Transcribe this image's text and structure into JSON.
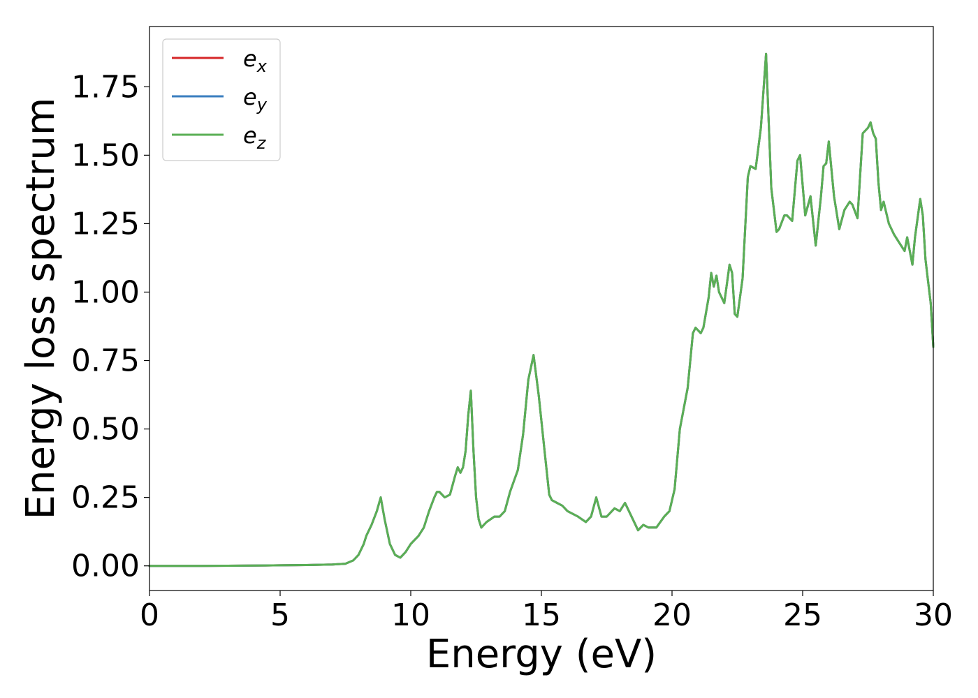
{
  "chart_data": {
    "type": "line",
    "xlabel": "Energy (eV)",
    "ylabel": "Energy loss spectrum",
    "xlim": [
      0,
      30
    ],
    "ylim": [
      -0.09,
      1.97
    ],
    "xticks": [
      0,
      5,
      10,
      15,
      20,
      25,
      30
    ],
    "xtick_labels": [
      "0",
      "5",
      "10",
      "15",
      "20",
      "25",
      "30"
    ],
    "yticks": [
      0.0,
      0.25,
      0.5,
      0.75,
      1.0,
      1.25,
      1.5,
      1.75
    ],
    "ytick_labels": [
      "0.00",
      "0.25",
      "0.50",
      "0.75",
      "1.00",
      "1.25",
      "1.50",
      "1.75"
    ],
    "grid": false,
    "legend_position": "top-left",
    "series": [
      {
        "name": "e",
        "subscript": "x",
        "color": "#d62728"
      },
      {
        "name": "e",
        "subscript": "y",
        "color": "#3a7ebf"
      },
      {
        "name": "e",
        "subscript": "z",
        "color": "#5aaf55"
      }
    ],
    "x": [
      0,
      2,
      4,
      5,
      6,
      7,
      7.5,
      7.8,
      8.0,
      8.2,
      8.3,
      8.5,
      8.7,
      8.85,
      9.0,
      9.2,
      9.4,
      9.6,
      9.8,
      10.0,
      10.3,
      10.5,
      10.7,
      10.9,
      11.0,
      11.1,
      11.3,
      11.5,
      11.7,
      11.8,
      11.9,
      12.0,
      12.1,
      12.2,
      12.3,
      12.4,
      12.5,
      12.6,
      12.7,
      12.9,
      13.2,
      13.4,
      13.6,
      13.8,
      14.1,
      14.3,
      14.5,
      14.7,
      14.9,
      15.1,
      15.3,
      15.4,
      15.6,
      15.8,
      16.0,
      16.2,
      16.4,
      16.7,
      16.9,
      17.1,
      17.3,
      17.5,
      17.8,
      18.0,
      18.2,
      18.4,
      18.7,
      18.9,
      19.1,
      19.4,
      19.7,
      19.9,
      20.1,
      20.3,
      20.6,
      20.8,
      20.9,
      21.1,
      21.2,
      21.4,
      21.5,
      21.6,
      21.7,
      21.8,
      22.0,
      22.2,
      22.3,
      22.4,
      22.5,
      22.7,
      22.9,
      23.0,
      23.2,
      23.4,
      23.6,
      23.8,
      24.0,
      24.1,
      24.3,
      24.4,
      24.6,
      24.8,
      24.9,
      25.1,
      25.3,
      25.5,
      25.7,
      25.8,
      25.9,
      26.0,
      26.2,
      26.4,
      26.6,
      26.8,
      26.9,
      27.1,
      27.3,
      27.5,
      27.6,
      27.7,
      27.8,
      27.9,
      28.0,
      28.1,
      28.3,
      28.5,
      28.7,
      28.9,
      29.0,
      29.2,
      29.3,
      29.5,
      29.6,
      29.7,
      29.8,
      29.9,
      30.0
    ],
    "y": [
      0.0,
      0.0,
      0.001,
      0.002,
      0.003,
      0.005,
      0.008,
      0.02,
      0.04,
      0.08,
      0.11,
      0.15,
      0.2,
      0.25,
      0.17,
      0.08,
      0.04,
      0.03,
      0.05,
      0.08,
      0.11,
      0.14,
      0.2,
      0.25,
      0.27,
      0.27,
      0.25,
      0.26,
      0.33,
      0.36,
      0.34,
      0.36,
      0.42,
      0.55,
      0.64,
      0.42,
      0.25,
      0.17,
      0.14,
      0.16,
      0.18,
      0.18,
      0.2,
      0.27,
      0.35,
      0.48,
      0.68,
      0.77,
      0.62,
      0.44,
      0.26,
      0.24,
      0.23,
      0.22,
      0.2,
      0.19,
      0.18,
      0.16,
      0.18,
      0.25,
      0.18,
      0.18,
      0.21,
      0.2,
      0.23,
      0.19,
      0.13,
      0.15,
      0.14,
      0.14,
      0.18,
      0.2,
      0.28,
      0.5,
      0.65,
      0.85,
      0.87,
      0.85,
      0.87,
      0.98,
      1.07,
      1.02,
      1.06,
      1.0,
      0.96,
      1.1,
      1.07,
      0.92,
      0.91,
      1.05,
      1.42,
      1.46,
      1.45,
      1.6,
      1.87,
      1.38,
      1.22,
      1.23,
      1.28,
      1.28,
      1.26,
      1.48,
      1.5,
      1.28,
      1.35,
      1.17,
      1.35,
      1.46,
      1.47,
      1.55,
      1.35,
      1.23,
      1.3,
      1.33,
      1.32,
      1.27,
      1.58,
      1.6,
      1.62,
      1.58,
      1.56,
      1.4,
      1.3,
      1.33,
      1.25,
      1.21,
      1.18,
      1.15,
      1.2,
      1.1,
      1.2,
      1.34,
      1.28,
      1.12,
      1.04,
      0.96,
      0.8
    ]
  }
}
